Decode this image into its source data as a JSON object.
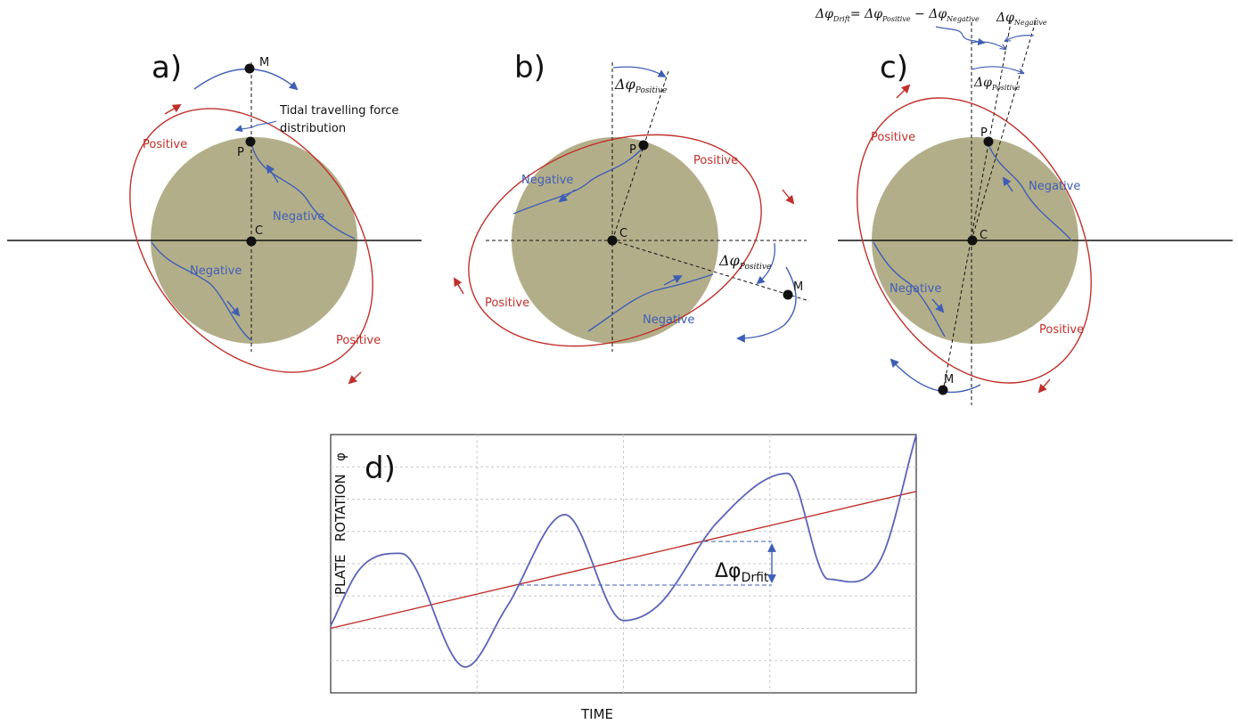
{
  "colors": {
    "positive": "#c0302b",
    "negative": "#3f5fb5",
    "body": "#b3ae8a",
    "axis": "#111111"
  },
  "panels": {
    "a": {
      "label": "a)",
      "point_M": "M",
      "point_P": "P",
      "point_C": "C",
      "note_line1": "Tidal travelling force",
      "note_line2": "distribution",
      "positive_top": "Positive",
      "negative_right": "Negative",
      "negative_left": "Negative",
      "positive_bottom": "Positive"
    },
    "b": {
      "label": "b)",
      "point_M": "M",
      "point_P": "P",
      "point_C": "C",
      "dphi_top_sym": "Δφ",
      "dphi_top_sub": "Positive",
      "dphi_right_sym": "Δφ",
      "dphi_right_sub": "Positive",
      "negative_top": "Negative",
      "positive_right": "Positive",
      "positive_left": "Positive",
      "negative_bottom": "Negative"
    },
    "c": {
      "label": "c)",
      "point_M": "M",
      "point_P": "P",
      "point_C": "C",
      "eq_lhs_sym": "Δφ",
      "eq_lhs_sub": "Drift",
      "eq_mid1_sym": "= Δφ",
      "eq_mid1_sub": "Positive",
      "eq_mid2_sym": " − Δφ",
      "eq_mid2_sub": "Negative",
      "dphi_neg_sym": "Δφ",
      "dphi_neg_sub": "Negative",
      "dphi_pos_sym": "Δφ",
      "dphi_pos_sub": "Positive",
      "positive_top": "Positive",
      "negative_right": "Negative",
      "negative_left": "Negative",
      "positive_bottom": "Positive"
    }
  },
  "chart_data": {
    "type": "line",
    "panel_label": "d)",
    "xlabel": "TIME",
    "ylabel": "PLATE   ROTATION   φ",
    "grid": true,
    "xlim": [
      0,
      1
    ],
    "ylim": [
      0,
      1
    ],
    "annotation": {
      "sym": "Δφ",
      "sub": "Drfit"
    },
    "series": [
      {
        "kind": "oscillation",
        "color": "#5b63b8",
        "x": [
          0.0,
          0.05,
          0.12,
          0.23,
          0.3,
          0.4,
          0.5,
          0.56,
          0.66,
          0.78,
          0.85,
          0.94,
          1.0
        ],
        "y": [
          0.26,
          0.48,
          0.54,
          0.1,
          0.33,
          0.69,
          0.28,
          0.34,
          0.66,
          0.85,
          0.44,
          0.52,
          1.0
        ]
      },
      {
        "kind": "trend",
        "color": "#c0302b",
        "x": [
          0.0,
          1.0
        ],
        "y": [
          0.25,
          0.78
        ]
      }
    ]
  }
}
